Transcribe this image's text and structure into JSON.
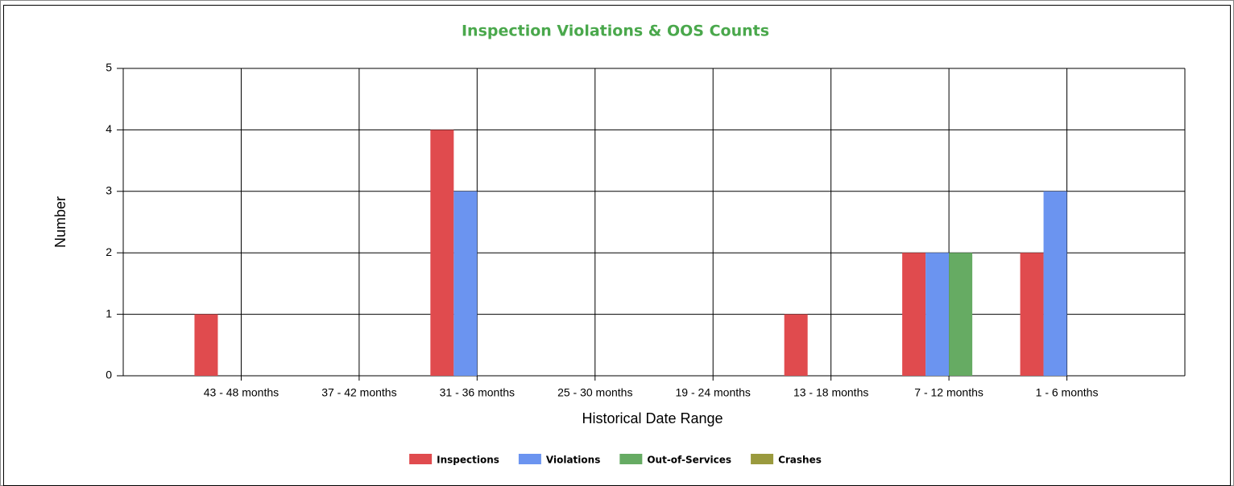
{
  "chart_data": {
    "type": "bar",
    "title": "Inspection Violations & OOS Counts",
    "xlabel": "Historical Date Range",
    "ylabel": "Number",
    "categories": [
      "43 - 48 months",
      "37 - 42 months",
      "31 - 36 months",
      "25 - 30 months",
      "19 - 24 months",
      "13 - 18 months",
      "7 - 12 months",
      "1 - 6 months"
    ],
    "series": [
      {
        "name": "Inspections",
        "color": "#e04b4e",
        "values": [
          1,
          0,
          4,
          0,
          0,
          1,
          2,
          2
        ]
      },
      {
        "name": "Violations",
        "color": "#6b94f0",
        "values": [
          0,
          0,
          3,
          0,
          0,
          0,
          2,
          3
        ]
      },
      {
        "name": "Out-of-Services",
        "color": "#66ab63",
        "values": [
          0,
          0,
          0,
          0,
          0,
          0,
          2,
          0
        ]
      },
      {
        "name": "Crashes",
        "color": "#9a9a3e",
        "values": [
          0,
          0,
          0,
          0,
          0,
          0,
          0,
          0
        ]
      }
    ],
    "ylim": [
      0,
      5
    ],
    "yticks": [
      0,
      1,
      2,
      3,
      4,
      5
    ],
    "grid": true,
    "legend": "bottom"
  }
}
